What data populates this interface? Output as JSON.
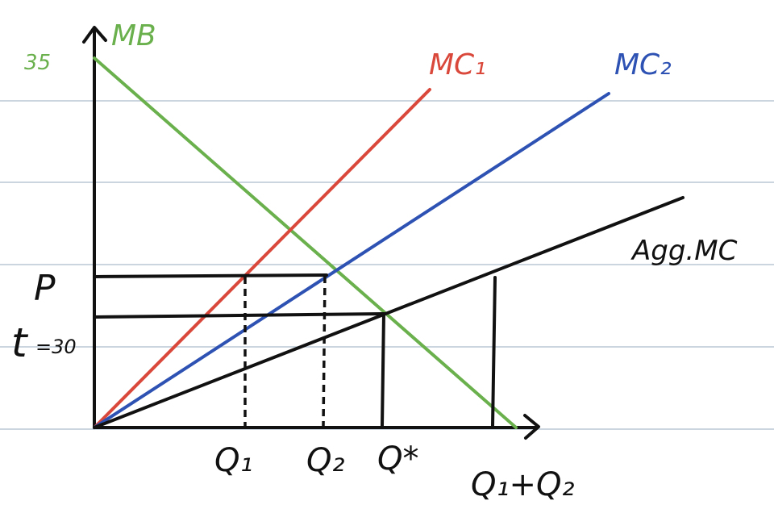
{
  "labels": {
    "mb": "MB",
    "mb_intercept": "35",
    "mc1": "MC₁",
    "mc2": "MC₂",
    "agg_mc": "Agg.MC",
    "p": "P",
    "t": "t",
    "t_value": "=30",
    "q1": "Q₁",
    "q2": "Q₂",
    "qstar": "Q*",
    "q1q2": "Q₁+Q₂"
  },
  "colors": {
    "mb": "#6ab04c",
    "mc1": "#d9483b",
    "mc2": "#2d52b3",
    "agg_mc": "#111111",
    "ruled_lines": "#b9c7d6",
    "axes": "#111111"
  }
}
